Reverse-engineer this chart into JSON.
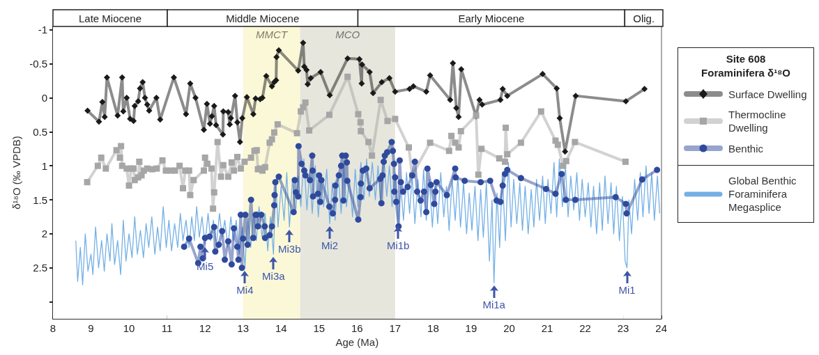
{
  "chart_data": {
    "type": "line",
    "xlabel": "Age (Ma)",
    "ylabel": "δ¹⁸O (‰ VPDB)",
    "legend_title": "Site 608 Foraminifera δ¹⁸O",
    "legend": "right",
    "xlim": [
      8,
      24
    ],
    "xticks": [
      8,
      9,
      10,
      11,
      12,
      13,
      14,
      15,
      16,
      17,
      18,
      19,
      20,
      21,
      22,
      23,
      24
    ],
    "ylim": [
      3.25,
      -1.05
    ],
    "yticks": [
      -1,
      -0.5,
      0,
      0.5,
      1,
      1.5,
      2,
      2.5,
      {
        "value": 3,
        "label": null
      }
    ],
    "bands": [
      {
        "axis": "x",
        "from": 8,
        "to": 11,
        "label": "Late Miocene",
        "color": "#ffffff"
      },
      {
        "axis": "x",
        "from": 11,
        "to": 16,
        "label": "Middle Miocene",
        "color": "#ffffff"
      },
      {
        "axis": "x",
        "from": 16,
        "to": 23,
        "label": "Early Miocene",
        "color": "#ffffff"
      },
      {
        "axis": "x",
        "from": 23,
        "to": 24,
        "label": "Olig.",
        "color": "#ffffff"
      },
      {
        "axis": "x",
        "from": 13,
        "to": 14.5,
        "label": "MMCT",
        "color": "#fbf8d8"
      },
      {
        "axis": "x",
        "from": 14.5,
        "to": 17,
        "label": "MCO",
        "color": "#e6e6dd"
      }
    ],
    "annotations": [
      {
        "text": "Mi5",
        "x": 12.0,
        "y": 2.15
      },
      {
        "text": "Mi4",
        "x": 13.05,
        "y": 2.5
      },
      {
        "text": "Mi3a",
        "x": 13.8,
        "y": 2.3
      },
      {
        "text": "Mi3b",
        "x": 14.22,
        "y": 1.9
      },
      {
        "text": "Mi2",
        "x": 15.28,
        "y": 1.85
      },
      {
        "text": "Mi1b",
        "x": 17.08,
        "y": 1.85
      },
      {
        "text": "Mi1a",
        "x": 19.6,
        "y": 2.72
      },
      {
        "text": "Mi1",
        "x": 23.1,
        "y": 2.5
      }
    ],
    "series": [
      {
        "name": "Global Benthic Foraminifera Megasplice",
        "marker": "none",
        "color": "#74b0e4",
        "x": [
          8.6,
          8.65,
          8.72,
          8.78,
          8.85,
          8.92,
          9.0,
          9.05,
          9.12,
          9.2,
          9.28,
          9.35,
          9.42,
          9.5,
          9.55,
          9.62,
          9.7,
          9.78,
          9.85,
          9.92,
          10.0,
          10.08,
          10.15,
          10.22,
          10.3,
          10.38,
          10.45,
          10.52,
          10.6,
          10.68,
          10.75,
          10.82,
          10.9,
          10.98,
          11.05,
          11.12,
          11.2,
          11.28,
          11.35,
          11.42,
          11.5,
          11.58,
          11.65,
          11.72,
          11.78,
          11.85,
          11.92,
          12.0,
          12.08,
          12.15,
          12.22,
          12.3,
          12.38,
          12.45,
          12.52,
          12.6,
          12.68,
          12.75,
          12.82,
          12.9,
          12.98,
          13.05,
          13.12,
          13.2,
          13.28,
          13.35,
          13.42,
          13.5,
          13.58,
          13.65,
          13.72,
          13.8,
          13.86,
          13.92,
          14.0,
          14.08,
          14.15,
          14.22,
          14.3,
          14.38,
          14.45,
          14.52,
          14.6,
          14.68,
          14.75,
          14.82,
          14.9,
          14.98,
          15.05,
          15.12,
          15.2,
          15.28,
          15.35,
          15.42,
          15.5,
          15.58,
          15.65,
          15.72,
          15.8,
          15.88,
          15.95,
          16.02,
          16.1,
          16.18,
          16.25,
          16.32,
          16.4,
          16.48,
          16.55,
          16.62,
          16.7,
          16.78,
          16.85,
          16.92,
          17.0,
          17.08,
          17.15,
          17.22,
          17.3,
          17.38,
          17.45,
          17.52,
          17.6,
          17.68,
          17.75,
          17.82,
          17.9,
          17.98,
          18.05,
          18.12,
          18.2,
          18.28,
          18.35,
          18.42,
          18.5,
          18.58,
          18.65,
          18.72,
          18.8,
          18.88,
          18.95,
          19.02,
          19.1,
          19.18,
          19.25,
          19.32,
          19.4,
          19.48,
          19.55,
          19.6,
          19.68,
          19.75,
          19.82,
          19.9,
          19.98,
          20.05,
          20.12,
          20.2,
          20.28,
          20.35,
          20.42,
          20.5,
          20.58,
          20.65,
          20.72,
          20.8,
          20.88,
          20.95,
          21.02,
          21.1,
          21.18,
          21.25,
          21.32,
          21.4,
          21.48,
          21.55,
          21.62,
          21.7,
          21.78,
          21.85,
          21.92,
          22.0,
          22.08,
          22.15,
          22.22,
          22.3,
          22.38,
          22.45,
          22.52,
          22.6,
          22.68,
          22.75,
          22.82,
          22.9,
          22.98,
          23.05,
          23.1,
          23.15,
          23.22,
          23.3,
          23.38,
          23.45,
          23.52,
          23.6,
          23.68,
          23.75,
          23.82,
          23.9,
          23.96
        ],
        "values": [
          2.1,
          2.7,
          2.2,
          2.75,
          2.0,
          2.55,
          2.3,
          2.6,
          1.9,
          2.5,
          2.1,
          2.55,
          2.0,
          2.4,
          1.85,
          2.45,
          2.1,
          2.6,
          1.8,
          2.4,
          2.0,
          2.35,
          1.75,
          2.3,
          1.95,
          2.35,
          1.85,
          2.2,
          1.75,
          2.3,
          1.9,
          2.25,
          1.6,
          2.2,
          1.8,
          2.25,
          1.85,
          2.2,
          1.7,
          2.1,
          1.8,
          2.2,
          1.75,
          2.1,
          1.6,
          2.05,
          1.75,
          2.15,
          1.7,
          2.1,
          1.8,
          2.15,
          1.7,
          2.05,
          1.8,
          2.2,
          1.75,
          2.1,
          1.8,
          2.3,
          1.9,
          2.5,
          1.75,
          2.2,
          1.7,
          2.1,
          1.6,
          2.05,
          1.7,
          2.25,
          1.75,
          2.3,
          1.2,
          1.9,
          1.3,
          1.8,
          1.1,
          1.9,
          1.2,
          1.7,
          1.15,
          1.6,
          0.9,
          1.65,
          1.1,
          1.7,
          1.0,
          1.75,
          1.15,
          1.6,
          1.05,
          1.85,
          1.25,
          1.8,
          1.1,
          1.7,
          1.0,
          1.6,
          1.2,
          1.75,
          1.05,
          1.6,
          0.95,
          1.5,
          0.9,
          1.45,
          0.95,
          1.5,
          1.0,
          1.55,
          0.85,
          1.45,
          1.0,
          1.6,
          1.1,
          1.85,
          1.3,
          1.8,
          1.1,
          1.7,
          1.15,
          1.85,
          1.2,
          1.75,
          1.05,
          1.8,
          1.2,
          1.9,
          1.3,
          1.85,
          1.1,
          1.75,
          1.3,
          1.95,
          1.2,
          1.8,
          1.15,
          1.9,
          1.25,
          2.0,
          1.4,
          1.95,
          1.3,
          2.1,
          1.35,
          2.05,
          1.25,
          2.4,
          1.5,
          2.72,
          1.4,
          2.2,
          1.1,
          2.1,
          0.95,
          1.9,
          1.2,
          1.85,
          1.25,
          1.95,
          1.3,
          2.0,
          1.35,
          1.9,
          1.2,
          1.8,
          1.15,
          1.85,
          1.2,
          1.7,
          0.95,
          1.75,
          0.9,
          1.6,
          1.0,
          1.75,
          1.15,
          1.65,
          1.1,
          1.8,
          1.2,
          1.75,
          1.25,
          1.9,
          1.3,
          2.0,
          1.25,
          1.95,
          1.15,
          1.85,
          1.25,
          2.0,
          1.3,
          2.1,
          1.45,
          2.4,
          2.5,
          1.5,
          2.0,
          1.2,
          1.8,
          1.1,
          1.75,
          1.0,
          1.7,
          1.1,
          1.8,
          1.15,
          1.7
        ]
      },
      {
        "name": "Surface Dwelling",
        "marker": "diamond",
        "color": "#1a1a1a",
        "x": [
          8.91,
          9.21,
          9.3,
          9.36,
          9.42,
          9.7,
          9.82,
          9.85,
          9.94,
          10.03,
          10.12,
          10.15,
          10.24,
          10.29,
          10.36,
          10.42,
          10.48,
          10.53,
          10.72,
          10.82,
          11.18,
          11.5,
          11.61,
          11.75,
          11.97,
          12.05,
          12.13,
          12.18,
          12.24,
          12.29,
          12.47,
          12.48,
          12.61,
          12.65,
          12.68,
          12.79,
          12.85,
          12.92,
          12.98,
          13.1,
          13.27,
          13.33,
          13.45,
          13.51,
          13.61,
          13.76,
          13.82,
          13.87,
          13.88,
          13.94,
          14.45,
          14.58,
          14.61,
          14.67,
          14.7,
          14.78,
          15.04,
          15.28,
          15.75,
          16.06,
          16.12,
          16.13,
          16.33,
          16.42,
          16.65,
          16.85,
          17.0,
          17.38,
          17.48,
          17.82,
          17.92,
          18.45,
          18.52,
          18.61,
          18.67,
          18.74,
          19.13,
          19.22,
          19.29,
          19.77,
          19.83,
          19.95,
          20.88,
          21.25,
          21.33,
          21.47,
          21.75,
          23.07,
          23.56
        ],
        "values": [
          0.19,
          0.35,
          0.06,
          0.28,
          -0.3,
          0.26,
          -0.3,
          0.2,
          0.0,
          0.31,
          0.34,
          0.12,
          0.05,
          -0.14,
          -0.23,
          0.0,
          0.1,
          0.19,
          0.0,
          0.32,
          -0.3,
          0.24,
          -0.21,
          0.0,
          0.47,
          0.09,
          0.38,
          0.27,
          0.12,
          0.4,
          0.54,
          0.2,
          0.21,
          0.39,
          0.3,
          -0.03,
          0.36,
          0.65,
          0.3,
          -0.01,
          0.24,
          0.01,
          0.02,
          0.0,
          -0.32,
          -0.17,
          -0.23,
          -0.26,
          -0.6,
          -0.7,
          -0.4,
          -0.81,
          -0.46,
          -0.41,
          -0.2,
          -0.29,
          -0.38,
          -0.04,
          -0.58,
          -0.57,
          -0.21,
          -0.49,
          -0.38,
          -0.07,
          -0.23,
          -0.29,
          -0.09,
          -0.13,
          -0.17,
          -0.09,
          -0.33,
          0.03,
          -0.51,
          0.15,
          0.28,
          -0.42,
          0.27,
          0.03,
          0.1,
          0.03,
          -0.13,
          -0.03,
          -0.35,
          -0.14,
          0.3,
          0.79,
          -0.03,
          0.05,
          -0.13
        ]
      },
      {
        "name": "Thermocline Dwelling",
        "marker": "square",
        "color": "#a6a6a6",
        "x": [
          8.9,
          9.18,
          9.27,
          9.39,
          9.67,
          9.76,
          9.79,
          9.82,
          9.94,
          10.0,
          10.06,
          10.12,
          10.15,
          10.24,
          10.27,
          10.33,
          10.39,
          10.48,
          10.61,
          10.73,
          10.88,
          10.97,
          11.09,
          11.21,
          11.33,
          11.42,
          11.48,
          11.58,
          11.61,
          11.7,
          11.97,
          12.0,
          12.06,
          12.17,
          12.21,
          12.24,
          12.33,
          12.42,
          12.48,
          12.61,
          12.7,
          12.76,
          12.85,
          12.94,
          13.04,
          13.21,
          13.3,
          13.36,
          13.39,
          13.45,
          13.51,
          13.58,
          13.7,
          13.76,
          13.82,
          13.91,
          14.42,
          14.52,
          14.58,
          14.64,
          14.74,
          15.27,
          15.75,
          16.03,
          16.09,
          16.1,
          16.3,
          16.39,
          16.62,
          16.8,
          17.0,
          17.36,
          17.45,
          17.92,
          18.42,
          18.48,
          18.58,
          18.67,
          18.73,
          19.13,
          19.19,
          19.27,
          19.74,
          19.89,
          19.91,
          19.95,
          20.31,
          20.84,
          21.22,
          21.28,
          21.42,
          21.5,
          21.73,
          23.06
        ],
        "values": [
          1.24,
          1.0,
          0.88,
          1.04,
          0.77,
          0.88,
          0.71,
          1.0,
          1.04,
          1.29,
          1.04,
          1.04,
          1.21,
          1.17,
          0.94,
          1.14,
          1.07,
          1.04,
          1.05,
          1.04,
          0.92,
          1.07,
          1.07,
          1.07,
          1.0,
          1.33,
          1.07,
          1.07,
          1.43,
          1.21,
          1.07,
          0.88,
          0.97,
          1.04,
          1.63,
          1.39,
          0.65,
          1.16,
          0.99,
          1.16,
          0.95,
          1.07,
          0.87,
          1.04,
          0.94,
          0.88,
          0.78,
          0.77,
          1.05,
          1.04,
          1.07,
          1.02,
          0.66,
          0.61,
          0.51,
          0.39,
          0.52,
          0.2,
          0.14,
          0.07,
          0.48,
          0.25,
          -0.31,
          0.24,
          0.36,
          0.49,
          0.65,
          0.85,
          0.03,
          0.34,
          0.31,
          0.73,
          1.14,
          0.66,
          0.78,
          0.56,
          0.66,
          0.73,
          0.49,
          0.26,
          1.13,
          0.75,
          0.89,
          0.94,
          0.44,
          0.83,
          0.66,
          0.2,
          0.63,
          0.69,
          1.0,
          0.93,
          0.65,
          0.94
        ]
      },
      {
        "name": "Benthic",
        "marker": "circle",
        "color": "#2f4a9c",
        "x": [
          11.45,
          11.58,
          11.82,
          11.88,
          11.94,
          12.0,
          12.12,
          12.24,
          12.27,
          12.36,
          12.45,
          12.52,
          12.61,
          12.7,
          12.76,
          12.85,
          12.88,
          12.94,
          12.97,
          13.0,
          13.06,
          13.12,
          13.21,
          13.27,
          13.33,
          13.36,
          13.39,
          13.48,
          13.57,
          13.58,
          13.7,
          13.76,
          13.82,
          13.83,
          13.85,
          13.94,
          14.33,
          14.36,
          14.39,
          14.45,
          14.46,
          14.54,
          14.61,
          14.64,
          14.76,
          14.82,
          14.83,
          14.84,
          14.97,
          15.0,
          15.03,
          15.06,
          15.27,
          15.36,
          15.42,
          15.43,
          15.52,
          15.58,
          15.61,
          15.64,
          15.7,
          15.73,
          15.74,
          16.03,
          16.09,
          16.1,
          16.15,
          16.24,
          16.33,
          16.61,
          16.64,
          16.67,
          16.7,
          16.73,
          16.79,
          16.91,
          16.94,
          16.97,
          16.98,
          17.0,
          17.03,
          17.09,
          17.12,
          17.15,
          17.21,
          17.33,
          17.45,
          17.52,
          17.58,
          17.67,
          17.76,
          17.82,
          17.85,
          17.94,
          18.03,
          18.06,
          18.09,
          18.36,
          18.58,
          18.59,
          18.83,
          19.25,
          19.5,
          19.67,
          19.77,
          19.83,
          19.89,
          19.95,
          20.31,
          20.97,
          21.22,
          21.38,
          21.49,
          21.74,
          22.8,
          23.07,
          23.09,
          23.5,
          23.89
        ],
        "values": [
          2.19,
          2.07,
          2.43,
          2.19,
          2.36,
          2.06,
          2.04,
          1.9,
          2.26,
          2.16,
          1.96,
          2.38,
          2.11,
          2.45,
          1.92,
          2.19,
          2.38,
          1.72,
          2.5,
          2.07,
          1.72,
          2.16,
          1.5,
          2.06,
          1.72,
          1.72,
          1.89,
          1.72,
          1.89,
          2.06,
          2.02,
          1.89,
          1.58,
          1.43,
          1.24,
          1.16,
          1.68,
          1.21,
          1.39,
          1.45,
          0.71,
          0.97,
          1.07,
          1.14,
          1.21,
          0.85,
          1.07,
          1.45,
          1.41,
          1.14,
          1.53,
          1.21,
          1.6,
          1.7,
          1.5,
          1.29,
          1.14,
          1.0,
          0.85,
          1.51,
          0.85,
          0.95,
          1.22,
          1.79,
          1.46,
          1.26,
          1.07,
          1.04,
          1.33,
          1.19,
          1.55,
          1.14,
          0.94,
          0.85,
          0.8,
          0.65,
          0.78,
          0.97,
          1.38,
          1.17,
          1.53,
          1.89,
          0.92,
          1.24,
          1.38,
          1.31,
          1.14,
          0.94,
          1.38,
          1.51,
          1.38,
          1.68,
          1.04,
          1.28,
          1.56,
          1.38,
          1.24,
          1.43,
          1.04,
          1.17,
          1.22,
          1.24,
          1.22,
          1.51,
          1.53,
          1.29,
          1.12,
          1.06,
          1.18,
          1.34,
          1.41,
          1.12,
          1.5,
          1.5,
          1.46,
          1.56,
          1.7,
          1.2,
          1.06
        ]
      }
    ]
  }
}
